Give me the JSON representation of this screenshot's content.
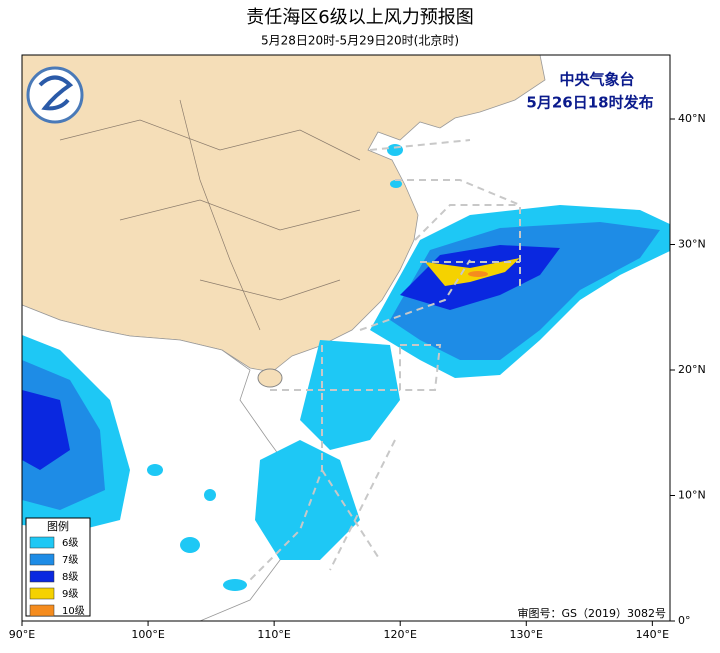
{
  "header": {
    "title": "责任海区6级以上风力预报图",
    "subtitle": "5月28日20时-5月29日20时(北京时)"
  },
  "issuer": {
    "agency": "中央气象台",
    "issued": "5月26日18时发布"
  },
  "map": {
    "xlim": [
      90,
      141.4
    ],
    "ylim": [
      0,
      45.1
    ],
    "xticks": [
      {
        "value": 90,
        "label": "90°E"
      },
      {
        "value": 100,
        "label": "100°E"
      },
      {
        "value": 110,
        "label": "110°E"
      },
      {
        "value": 120,
        "label": "120°E"
      },
      {
        "value": 130,
        "label": "130°E"
      },
      {
        "value": 140,
        "label": "140°E"
      }
    ],
    "yticks": [
      {
        "value": 0,
        "label": "0°"
      },
      {
        "value": 10,
        "label": "10°N"
      },
      {
        "value": 20,
        "label": "20°N"
      },
      {
        "value": 30,
        "label": "30°N"
      },
      {
        "value": 40,
        "label": "40°N"
      }
    ]
  },
  "legend": {
    "title": "图例",
    "items": [
      {
        "name": "6级",
        "color": "#1ec8f5"
      },
      {
        "name": "7级",
        "color": "#1e8ce6"
      },
      {
        "name": "8级",
        "color": "#0a28e0"
      },
      {
        "name": "9级",
        "color": "#f5d200"
      },
      {
        "name": "10级",
        "color": "#f58c1e"
      }
    ]
  },
  "approval": "审图号：GS（2019）3082号"
}
